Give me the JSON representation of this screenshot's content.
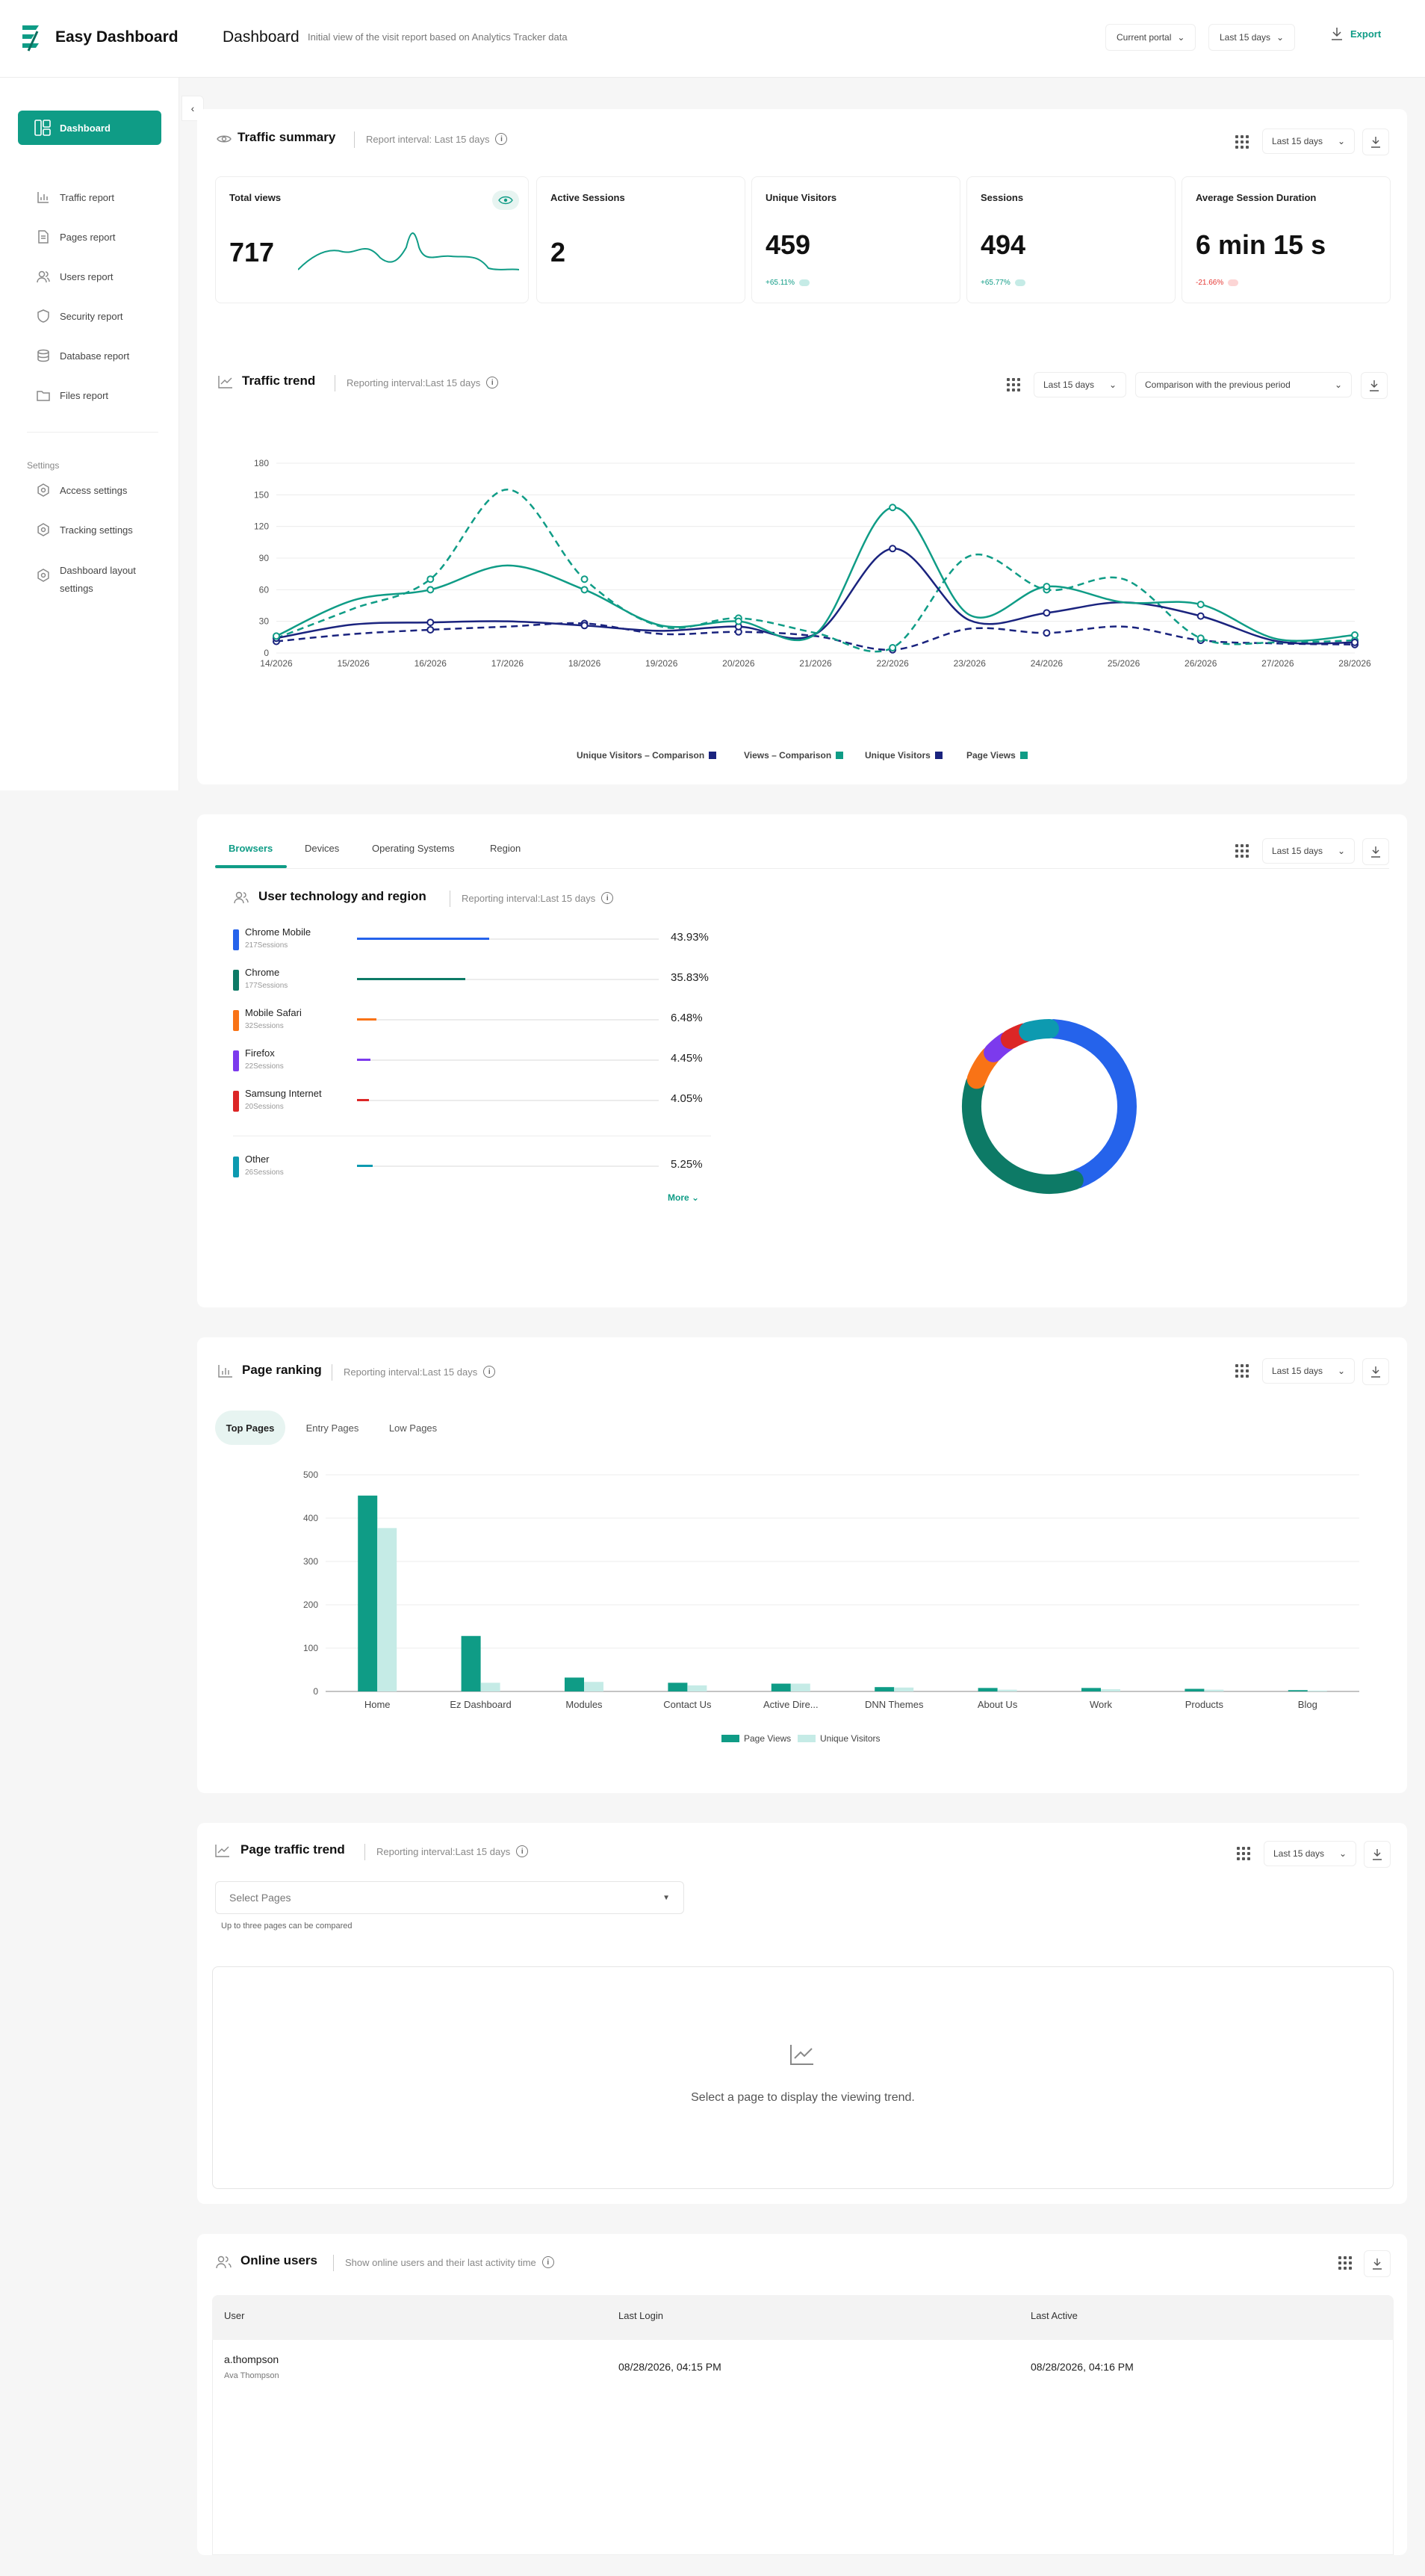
{
  "header": {
    "brand": "Easy Dashboard",
    "title": "Dashboard",
    "subtitle": "Initial view of the visit report based on Analytics Tracker data",
    "portal": "Current portal",
    "period": "Last 15 days",
    "export": "Export"
  },
  "sidebar": {
    "items": [
      {
        "label": "Dashboard",
        "icon": "dashboard-icon"
      },
      {
        "label": "Traffic report",
        "icon": "bar-chart-icon"
      },
      {
        "label": "Pages report",
        "icon": "file-icon"
      },
      {
        "label": "Users report",
        "icon": "users-icon"
      },
      {
        "label": "Security report",
        "icon": "shield-icon"
      },
      {
        "label": "Database report",
        "icon": "database-icon"
      },
      {
        "label": "Files report",
        "icon": "folder-icon"
      }
    ],
    "settings_label": "Settings",
    "settings": [
      {
        "label": "Access settings",
        "icon": "gear-icon"
      },
      {
        "label": "Tracking settings",
        "icon": "gear-icon"
      },
      {
        "label": "Dashboard layout settings",
        "icon": "gear-icon"
      }
    ]
  },
  "traffic_summary": {
    "title": "Traffic summary",
    "meta": "Report interval: Last 15 days",
    "period": "Last 15 days",
    "stats": [
      {
        "label": "Total views",
        "value": "717"
      },
      {
        "label": "Active Sessions",
        "value": "2"
      },
      {
        "label": "Unique Visitors",
        "value": "459",
        "change": "+65.11%"
      },
      {
        "label": "Sessions",
        "value": "494",
        "change": "+65.77%"
      },
      {
        "label": "Average Session Duration",
        "value": "6 min 15 s",
        "change": "-21.66%"
      }
    ]
  },
  "traffic_trend": {
    "title": "Traffic trend",
    "meta": "Reporting interval:Last 15 days",
    "period": "Last 15 days",
    "comparison": "Comparison with the previous period"
  },
  "chart_data": [
    {
      "type": "line",
      "x": [
        "14/2026",
        "15/2026",
        "16/2026",
        "17/2026",
        "18/2026",
        "19/2026",
        "20/2026",
        "21/2026",
        "22/2026",
        "23/2026",
        "24/2026",
        "25/2026",
        "26/2026",
        "27/2026",
        "28/2026"
      ],
      "ylim": [
        0,
        180
      ],
      "yticks": [
        0,
        30,
        60,
        90,
        120,
        150,
        180
      ],
      "series": [
        {
          "name": "Unique Visitors – Comparison",
          "color": "#1a237e",
          "dashed": true,
          "values": [
            11,
            18,
            22,
            25,
            28,
            18,
            20,
            16,
            3,
            23,
            19,
            25,
            12,
            9,
            8
          ]
        },
        {
          "name": "Views – Comparison",
          "color": "#0f9c86",
          "dashed": true,
          "values": [
            14,
            42,
            70,
            155,
            70,
            25,
            33,
            19,
            5,
            92,
            60,
            70,
            14,
            10,
            12
          ]
        },
        {
          "name": "Unique Visitors",
          "color": "#1a237e",
          "dashed": false,
          "values": [
            14,
            27,
            29,
            30,
            26,
            21,
            25,
            18,
            99,
            31,
            38,
            48,
            35,
            11,
            10
          ]
        },
        {
          "name": "Page Views",
          "color": "#0f9c86",
          "dashed": false,
          "values": [
            16,
            50,
            60,
            83,
            60,
            26,
            30,
            18,
            138,
            36,
            63,
            48,
            46,
            13,
            17
          ]
        }
      ]
    },
    {
      "type": "pie",
      "categories": [
        "Chrome Mobile",
        "Chrome",
        "Mobile Safari",
        "Firefox",
        "Samsung Internet",
        "Other"
      ],
      "values": [
        43.93,
        35.83,
        6.48,
        4.45,
        4.05,
        5.25
      ],
      "colors": [
        "#2563eb",
        "#0d7a66",
        "#f97316",
        "#7c3aed",
        "#dc2626",
        "#0d9ab0"
      ]
    },
    {
      "type": "bar",
      "categories": [
        "Home",
        "Ez Dashboard",
        "Modules",
        "Contact Us",
        "Active Dire...",
        "DNN Themes",
        "About Us",
        "Work",
        "Products",
        "Blog"
      ],
      "ylim": [
        0,
        500
      ],
      "yticks": [
        0,
        100,
        200,
        300,
        400,
        500
      ],
      "series": [
        {
          "name": "Page Views",
          "color": "#0f9c86",
          "values": [
            452,
            128,
            32,
            20,
            18,
            10,
            8,
            8,
            6,
            3
          ]
        },
        {
          "name": "Unique Visitors",
          "color": "#c5ebe6",
          "values": [
            377,
            20,
            22,
            14,
            18,
            9,
            4,
            5,
            4,
            2
          ]
        }
      ]
    }
  ],
  "tech": {
    "tabs": [
      "Browsers",
      "Devices",
      "Operating Systems",
      "Region"
    ],
    "title": "User technology and region",
    "meta": "Reporting interval:Last 15 days",
    "period": "Last 15 days",
    "more": "More",
    "rows": [
      {
        "name": "Chrome Mobile",
        "sessions": "217Sessions",
        "pct": "43.93%"
      },
      {
        "name": "Chrome",
        "sessions": "177Sessions",
        "pct": "35.83%"
      },
      {
        "name": "Mobile Safari",
        "sessions": "32Sessions",
        "pct": "6.48%"
      },
      {
        "name": "Firefox",
        "sessions": "22Sessions",
        "pct": "4.45%"
      },
      {
        "name": "Samsung Internet",
        "sessions": "20Sessions",
        "pct": "4.05%"
      },
      {
        "name": "Other",
        "sessions": "26Sessions",
        "pct": "5.25%"
      }
    ]
  },
  "page_ranking": {
    "title": "Page ranking",
    "meta": "Reporting interval:Last 15 days",
    "period": "Last 15 days",
    "tabs": [
      "Top Pages",
      "Entry Pages",
      "Low Pages"
    ]
  },
  "page_traffic": {
    "title": "Page traffic trend",
    "meta": "Reporting interval:Last 15 days",
    "period": "Last 15 days",
    "select_placeholder": "Select Pages",
    "hint": "Up to three pages can be compared",
    "empty": "Select a page to display the viewing trend."
  },
  "online_users": {
    "title": "Online users",
    "meta": "Show online users and their last activity time",
    "columns": [
      "User",
      "Last Login",
      "Last Active"
    ],
    "rows": [
      {
        "user": "a.thompson",
        "name": "Ava Thompson",
        "login": "08/28/2026, 04:15 PM",
        "active": "08/28/2026, 04:16 PM"
      }
    ]
  }
}
